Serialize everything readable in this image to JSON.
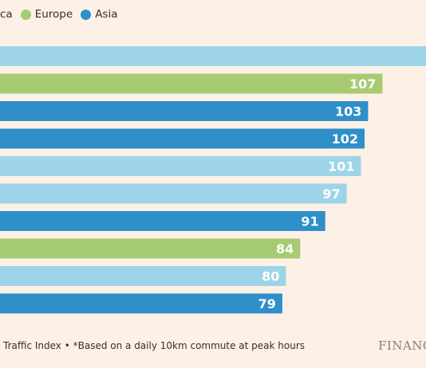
{
  "chart_data": {
    "type": "bar",
    "orientation": "horizontal",
    "legend": {
      "placement": "top-left",
      "items": [
        {
          "label": "ca",
          "color": "#9DD4E8"
        },
        {
          "label": "Europe",
          "color": "#A6CB72"
        },
        {
          "label": "Asia",
          "color": "#2E8FC9"
        }
      ]
    },
    "bars": [
      {
        "value": null,
        "region": "ca",
        "color": "#9DD4E8",
        "label": ""
      },
      {
        "value": 107,
        "region": "Europe",
        "color": "#A6CB72",
        "label": "107"
      },
      {
        "value": 103,
        "region": "Asia",
        "color": "#2E8FC9",
        "label": "103"
      },
      {
        "value": 102,
        "region": "Asia",
        "color": "#2E8FC9",
        "label": "102"
      },
      {
        "value": 101,
        "region": "ca",
        "color": "#9DD4E8",
        "label": "101"
      },
      {
        "value": 97,
        "region": "ca",
        "color": "#9DD4E8",
        "label": "97"
      },
      {
        "value": 91,
        "region": "Asia",
        "color": "#2E8FC9",
        "label": "91"
      },
      {
        "value": 84,
        "region": "Europe",
        "color": "#A6CB72",
        "label": "84"
      },
      {
        "value": 80,
        "region": "ca",
        "color": "#9DD4E8",
        "label": "80"
      },
      {
        "value": 79,
        "region": "Asia",
        "color": "#2E8FC9",
        "label": "79"
      }
    ],
    "xlim": [
      0,
      111
    ],
    "grid": false,
    "footnote": "Traffic Index • *Based on a daily 10km commute at peak hours"
  },
  "brand": "FINANC"
}
